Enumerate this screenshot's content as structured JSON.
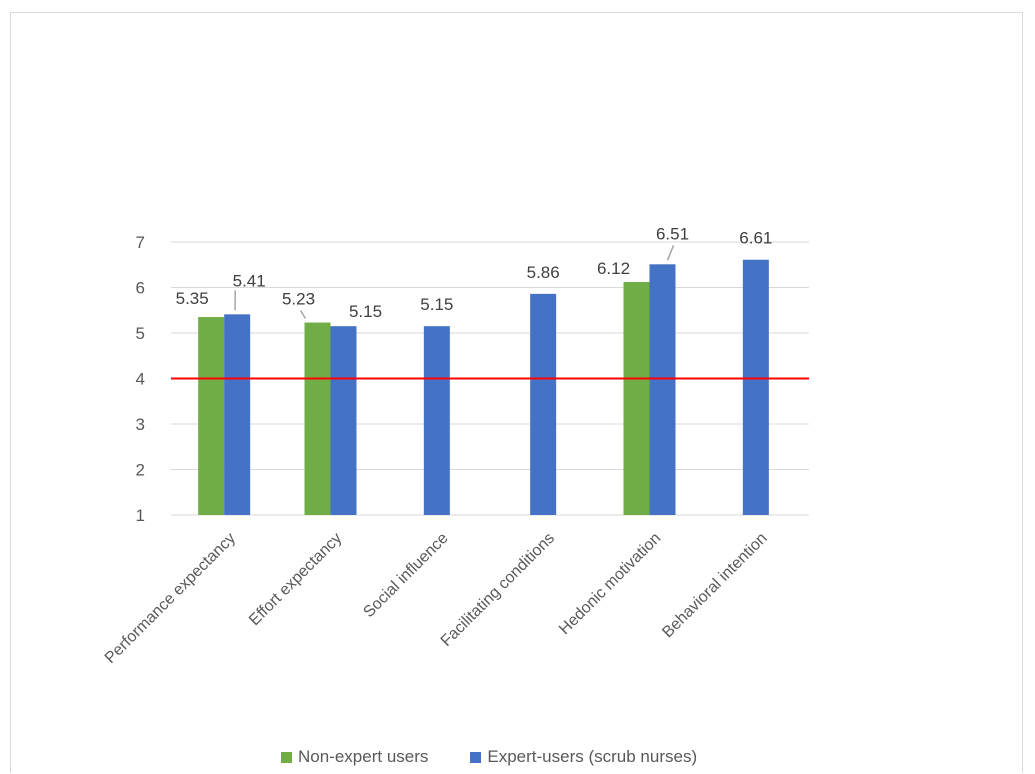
{
  "chart_data": {
    "type": "bar",
    "title": "",
    "xlabel": "",
    "ylabel": "",
    "ylim": [
      1,
      7
    ],
    "yticks": [
      1,
      2,
      3,
      4,
      5,
      6,
      7
    ],
    "grid": true,
    "legend_position": "bottom",
    "categories": [
      "Performance expectancy",
      "Effort expectancy",
      "Social influence",
      "Facilitating conditions",
      "Hedonic motivation",
      "Behavioral intention"
    ],
    "series": [
      {
        "name": "Non-expert users",
        "color": "#70ad47",
        "values": [
          5.35,
          5.23,
          null,
          null,
          6.12,
          null
        ],
        "labels": [
          "5.35",
          "5.23",
          null,
          null,
          "6.12",
          null
        ]
      },
      {
        "name": "Expert-users (scrub nurses)",
        "color": "#4472c4",
        "values": [
          5.41,
          5.15,
          5.15,
          5.86,
          6.51,
          6.61
        ],
        "labels": [
          "5.41",
          "5.15",
          "5.15",
          "5.86",
          "6.51",
          "6.61"
        ]
      }
    ],
    "reference_line": {
      "y": 4,
      "color": "#ff0000"
    }
  }
}
